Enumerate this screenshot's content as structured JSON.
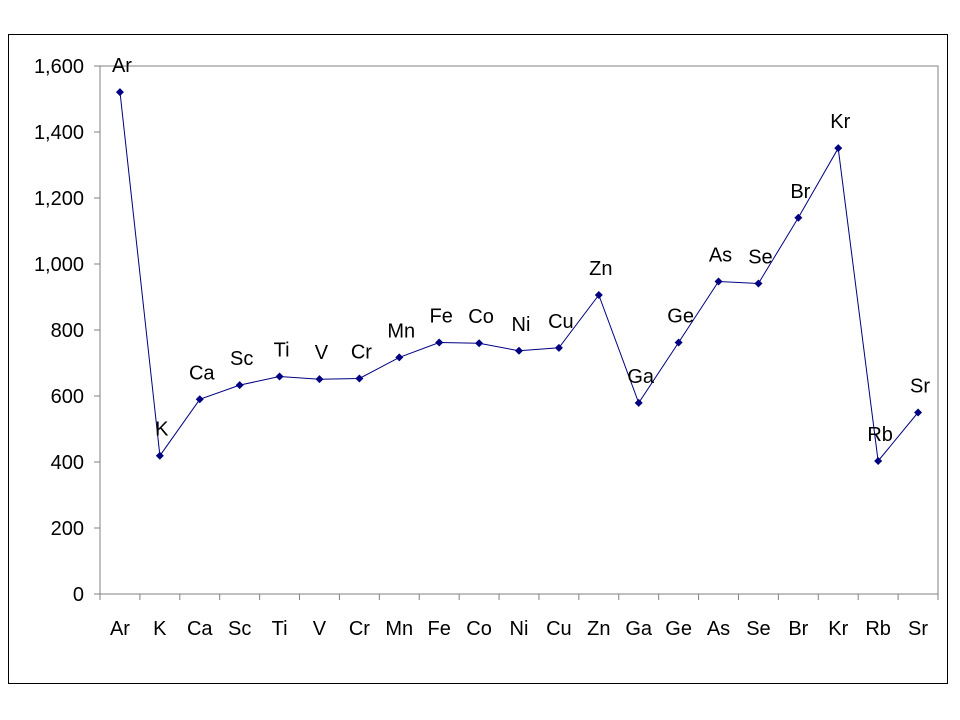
{
  "chart_data": {
    "type": "line",
    "title": "",
    "xlabel": "",
    "ylabel": "",
    "categories": [
      "Ar",
      "K",
      "Ca",
      "Sc",
      "Ti",
      "V",
      "Cr",
      "Mn",
      "Fe",
      "Co",
      "Ni",
      "Cu",
      "Zn",
      "Ga",
      "Ge",
      "As",
      "Se",
      "Br",
      "Kr",
      "Rb",
      "Sr"
    ],
    "series": [
      {
        "values": [
          1521,
          419,
          590,
          633,
          659,
          651,
          653,
          717,
          762,
          760,
          737,
          746,
          906,
          579,
          762,
          947,
          941,
          1140,
          1351,
          403,
          550
        ],
        "color": "#000080",
        "data_labels": [
          "Ar",
          "K",
          "Ca",
          "Sc",
          "Ti",
          "V",
          "Cr",
          "Mn",
          "Fe",
          "Co",
          "Ni",
          "Cu",
          "Zn",
          "Ga",
          "Ge",
          "As",
          "Se",
          "Br",
          "Kr",
          "Rb",
          "Sr"
        ]
      }
    ],
    "ylim": [
      0,
      1600
    ],
    "y_ticks": [
      "0",
      "200",
      "400",
      "600",
      "800",
      "1,000",
      "1,200",
      "1,400",
      "1,600"
    ],
    "grid": false,
    "legend": "none",
    "marker": "diamond"
  }
}
